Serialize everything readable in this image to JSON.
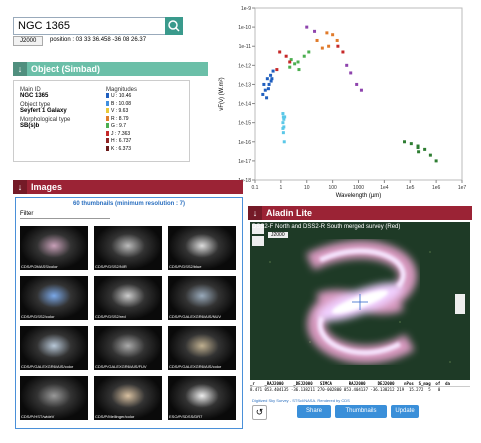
{
  "search": {
    "query": "NGC 1365",
    "frame": "J2000",
    "position": "position : 03 33 36.458 -36 08 26.37"
  },
  "object_panel": {
    "title": "Object (Simbad)",
    "fields": [
      {
        "label": "Main ID",
        "value": "NGC 1365"
      },
      {
        "label": "Object type",
        "value": "Seyfert 1 Galaxy"
      },
      {
        "label": "Morphological type",
        "value": "SB(s)b"
      }
    ],
    "magnitudes_title": "Magnitudes",
    "magnitudes": [
      {
        "text": "U : 10.46",
        "color": "#1f5fbf"
      },
      {
        "text": "B : 10.08",
        "color": "#3f8fdf"
      },
      {
        "text": "V : 9.63",
        "color": "#e8c93a"
      },
      {
        "text": "R : 8.79",
        "color": "#e07a2a"
      },
      {
        "text": "G : 9.7",
        "color": "#4caf50"
      },
      {
        "text": "J : 7.363",
        "color": "#c62828"
      },
      {
        "text": "H : 6.737",
        "color": "#8e2424"
      },
      {
        "text": "K : 6.373",
        "color": "#6a1a1a"
      }
    ]
  },
  "chart_data": {
    "type": "scatter",
    "y_label": "νF(ν) (W.m²)",
    "x_label": "Wavelength (µm)",
    "xlog": true,
    "ylog": true,
    "xlim": [
      0.1,
      10000000
    ],
    "ylim": [
      1e-18,
      1e-09
    ],
    "xticks": [
      0.1,
      1,
      10,
      100,
      1000,
      {
        "value": 10000,
        "label": "1e4"
      },
      {
        "value": 100000,
        "label": "1e5"
      },
      {
        "value": 1000000,
        "label": "1e6"
      },
      {
        "value": 10000000,
        "label": "1e7"
      }
    ],
    "yticks": [
      1e-18,
      1e-17,
      1e-16,
      1e-15,
      1e-14,
      1e-13,
      1e-12,
      1e-11,
      1e-10,
      1e-09
    ],
    "series": [
      {
        "color": "#1f5fbf",
        "x": [
          0.2,
          0.22,
          0.25,
          0.3,
          0.35,
          0.4,
          0.45,
          0.5,
          0.28,
          0.33,
          0.42
        ],
        "y": [
          3e-14,
          1e-13,
          5e-14,
          2e-13,
          1e-13,
          3e-13,
          2e-13,
          5e-13,
          2e-14,
          6e-14,
          1.5e-13
        ]
      },
      {
        "color": "#5bc8e8",
        "x": [
          1.2,
          1.2,
          1.2,
          1.25,
          1.25,
          1.3,
          1.3,
          1.35,
          1.4
        ],
        "y": [
          3e-15,
          1e-15,
          5e-16,
          2e-15,
          3e-16,
          1.5e-15,
          6e-16,
          1e-16,
          2e-15
        ]
      },
      {
        "color": "#4caf50",
        "x": [
          2.2,
          3.4,
          4.6,
          8,
          12,
          5,
          2.5
        ],
        "y": [
          8e-13,
          1.2e-12,
          1.5e-12,
          3e-12,
          5e-12,
          6e-13,
          2e-12
        ]
      },
      {
        "color": "#e07a2a",
        "x": [
          25,
          60,
          100,
          70,
          40,
          150
        ],
        "y": [
          2e-11,
          5e-11,
          4e-11,
          1e-11,
          8e-12,
          2e-11
        ]
      },
      {
        "color": "#c62828",
        "x": [
          0.7,
          0.9,
          1.6,
          2.2,
          160,
          250
        ],
        "y": [
          6e-13,
          5e-12,
          3e-12,
          1.5e-12,
          1e-11,
          5e-12
        ]
      },
      {
        "color": "#8e44ad",
        "x": [
          350,
          500,
          850,
          1300,
          20,
          10
        ],
        "y": [
          1e-12,
          4e-13,
          1e-13,
          5e-14,
          6e-11,
          1e-10
        ]
      },
      {
        "color": "#2e7d32",
        "x": [
          60000,
          110000,
          200000,
          210000,
          360000,
          600000,
          1000000,
          200000
        ],
        "y": [
          1e-16,
          8e-17,
          6e-17,
          3e-17,
          4e-17,
          2e-17,
          1e-17,
          5e-17
        ]
      }
    ]
  },
  "images": {
    "title": "Images",
    "summary": "60 thumbnails (minimum resolution : 7)",
    "filter": "Filter",
    "thumbnails": [
      "CDS/P/2MASS/color",
      "CDS/P/DSS2/NIR",
      "CDS/P/DSS2/blue",
      "CDS/P/DSS2/color",
      "CDS/P/DSS2/red",
      "CDS/P/GALEXGR6/AIS/NUV",
      "CDS/P/GALEXGR6/AIS/color",
      "CDS/P/GALEXGR6/AIS/FUV",
      "CDS/P/GALEXGR6/AIS/color",
      "CDS/P/HST/wideV",
      "CDS/P/Mellinger/color",
      "ESO/P/SDSS/DR7"
    ]
  },
  "aladin": {
    "title": "Aladin Lite",
    "survey": "DSS2-F North and DSS2-R South merged survey (Red)",
    "frame": "J2000",
    "table_header": "_r    _RAJ2000    _DEJ2000   SIMCA       RAJ2000     DEJ2000    nPos  S_mag  of  da",
    "table_row": "8.471 053.404135 -36.138211 270-002800 053.404137 -36.138212 219  15.272  5   0",
    "credit": "Digitized Sky Survey - STScI/NASA. Rendered by CDS",
    "buttons": [
      "Share",
      "Thumbnails",
      "Update"
    ]
  }
}
